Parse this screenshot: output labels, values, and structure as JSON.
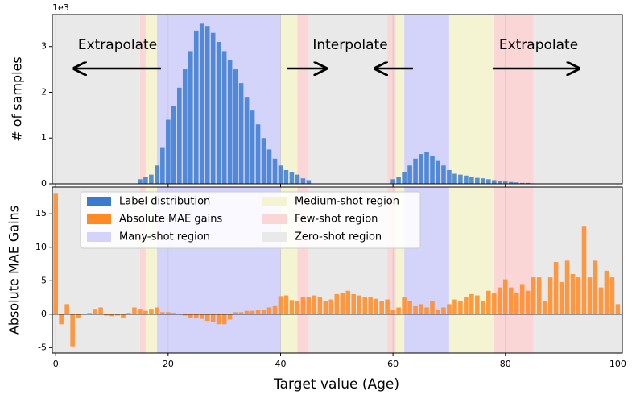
{
  "chart_data": [
    {
      "type": "bar",
      "ylabel": "# of samples",
      "y_offset_label": "1e3",
      "annotations": [
        "Extrapolate",
        "Interpolate",
        "Extrapolate"
      ],
      "xlim": [
        -0.6,
        100.8
      ],
      "xticks": [
        0,
        20,
        40,
        60,
        80,
        100
      ],
      "ylim": [
        0,
        3.7
      ],
      "yticks": [
        0,
        1,
        2,
        3
      ],
      "grid": true,
      "x": [
        15,
        16,
        17,
        18,
        19,
        20,
        21,
        22,
        23,
        24,
        25,
        26,
        27,
        28,
        29,
        30,
        31,
        32,
        33,
        34,
        35,
        36,
        37,
        38,
        39,
        40,
        41,
        42,
        43,
        44,
        45,
        60,
        61,
        62,
        63,
        64,
        65,
        66,
        67,
        68,
        69,
        70,
        71,
        72,
        73,
        74,
        75,
        76,
        77,
        78,
        79,
        80,
        81,
        82,
        83,
        84,
        85
      ],
      "series": [
        {
          "name": "Label distribution",
          "color": "#3a7bd0",
          "values": [
            0.1,
            0.15,
            0.2,
            0.4,
            0.8,
            1.4,
            1.7,
            2.1,
            2.5,
            2.9,
            3.35,
            3.5,
            3.45,
            3.3,
            3.1,
            2.9,
            2.7,
            2.5,
            2.2,
            1.9,
            1.6,
            1.3,
            1.0,
            0.75,
            0.55,
            0.4,
            0.3,
            0.25,
            0.2,
            0.12,
            0.08,
            0.1,
            0.15,
            0.25,
            0.4,
            0.55,
            0.65,
            0.7,
            0.6,
            0.5,
            0.4,
            0.3,
            0.22,
            0.2,
            0.18,
            0.15,
            0.13,
            0.12,
            0.1,
            0.08,
            0.06,
            0.05,
            0.04,
            0.03,
            0.02,
            0.02,
            0.01
          ]
        }
      ],
      "regions": [
        {
          "name": "Many-shot region",
          "color": "#d4d4fb",
          "ranges": [
            [
              18,
              40
            ],
            [
              62,
              70
            ]
          ]
        },
        {
          "name": "Medium-shot region",
          "color": "#f4f4d2",
          "ranges": [
            [
              16,
              18
            ],
            [
              40,
              43
            ],
            [
              60.5,
              62
            ],
            [
              70,
              78
            ]
          ]
        },
        {
          "name": "Few-shot region",
          "color": "#fbd6d6",
          "ranges": [
            [
              15,
              16
            ],
            [
              43,
              45
            ],
            [
              59,
              60.5
            ],
            [
              78,
              85
            ]
          ]
        },
        {
          "name": "Zero-shot region",
          "color": "#e9e9e9",
          "ranges": [
            [
              -1,
              15
            ],
            [
              45,
              59
            ],
            [
              85,
              102
            ]
          ]
        }
      ]
    },
    {
      "type": "bar",
      "ylabel": "Absolute MAE Gains",
      "xlabel": "Target value (Age)",
      "xlim": [
        -0.6,
        100.8
      ],
      "xticks": [
        0,
        20,
        40,
        60,
        80,
        100
      ],
      "ylim": [
        -5.8,
        19
      ],
      "yticks": [
        -5,
        0,
        5,
        10,
        15
      ],
      "grid": true,
      "legend": "upper left",
      "x": [
        0,
        1,
        2,
        3,
        4,
        5,
        6,
        7,
        8,
        9,
        10,
        11,
        12,
        13,
        14,
        15,
        16,
        17,
        18,
        19,
        20,
        21,
        22,
        23,
        24,
        25,
        26,
        27,
        28,
        29,
        30,
        31,
        32,
        33,
        34,
        35,
        36,
        37,
        38,
        39,
        40,
        41,
        42,
        43,
        44,
        45,
        46,
        47,
        48,
        49,
        50,
        51,
        52,
        53,
        54,
        55,
        56,
        57,
        58,
        59,
        60,
        61,
        62,
        63,
        64,
        65,
        66,
        67,
        68,
        69,
        70,
        71,
        72,
        73,
        74,
        75,
        76,
        77,
        78,
        79,
        80,
        81,
        82,
        83,
        84,
        85,
        86,
        87,
        88,
        89,
        90,
        91,
        92,
        93,
        94,
        95,
        96,
        97,
        98,
        99,
        100
      ],
      "series": [
        {
          "name": "Absolute MAE gains",
          "color": "#ff8a24",
          "values": [
            18,
            -1.5,
            1.5,
            -4.8,
            -0.5,
            0.1,
            0.2,
            0.8,
            1.0,
            -0.2,
            -0.3,
            -0.2,
            -0.5,
            0.2,
            1.0,
            0.8,
            0.5,
            0.8,
            1.0,
            0.3,
            0.3,
            0.2,
            0.1,
            -0.2,
            -0.6,
            -0.5,
            -0.7,
            -1.0,
            -1.2,
            -1.5,
            -1.5,
            -0.8,
            0.3,
            0.3,
            0.5,
            0.5,
            0.6,
            0.7,
            1.0,
            1.2,
            2.7,
            2.8,
            2.1,
            2.0,
            2.5,
            2.5,
            2.8,
            2.5,
            2.0,
            2.2,
            3.0,
            3.2,
            3.5,
            3.0,
            2.8,
            2.5,
            2.5,
            2.3,
            2.0,
            2.2,
            0.7,
            1.0,
            2.5,
            2.0,
            1.2,
            1.5,
            1.0,
            2.0,
            0.7,
            1.0,
            1.5,
            2.2,
            2.0,
            2.5,
            3.0,
            2.8,
            2.0,
            3.5,
            3.2,
            4.0,
            5.2,
            4.0,
            3.2,
            4.5,
            3.5,
            5.5,
            5.5,
            2.0,
            5.5,
            7.8,
            4.8,
            8.0,
            6.0,
            5.5,
            13.2,
            5.5,
            8.0,
            4.0,
            6.5,
            5.5,
            1.5
          ]
        }
      ]
    }
  ]
}
